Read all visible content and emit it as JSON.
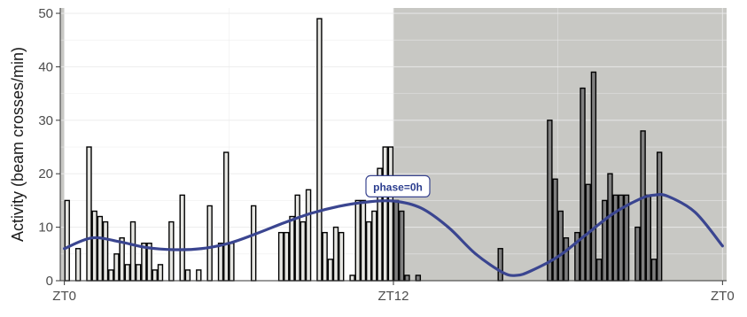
{
  "chart_data": {
    "type": "bar",
    "title": "",
    "xlabel": "",
    "ylabel": "Activity (beam crosses/min)",
    "ylim": [
      0,
      51
    ],
    "yticks": [
      0,
      10,
      20,
      30,
      40,
      50
    ],
    "xticks": [
      {
        "x": 0,
        "label": "ZT0"
      },
      {
        "x": 12,
        "label": "ZT12"
      },
      {
        "x": 24,
        "label": "ZT0"
      }
    ],
    "xlim": [
      -0.15,
      24.15
    ],
    "grid": true,
    "bin_width_h": 0.2,
    "shaded_periods": [
      {
        "start": -0.15,
        "end": 0,
        "color": "#c8c8c4"
      },
      {
        "start": 12,
        "end": 24.15,
        "color": "#c8c8c4"
      }
    ],
    "bar_colors": {
      "light": "#e6e6e2",
      "dark": "#7f7f7f",
      "stroke": "#000000"
    },
    "fit_color": "#3a4590",
    "values": [
      15,
      0,
      6,
      0,
      25,
      13,
      12,
      11,
      2,
      5,
      8,
      3,
      11,
      3,
      7,
      7,
      2,
      3,
      0,
      11,
      0,
      16,
      2,
      0,
      2,
      0,
      14,
      0,
      7,
      24,
      7,
      0,
      0,
      0,
      14,
      0,
      0,
      0,
      0,
      9,
      9,
      12,
      16,
      11,
      17,
      0,
      49,
      9,
      4,
      10,
      9,
      0,
      1,
      15,
      15,
      11,
      13,
      21,
      25,
      25,
      15,
      13,
      1,
      0,
      1,
      0,
      0,
      0,
      0,
      0,
      0,
      0,
      0,
      0,
      0,
      0,
      0,
      0,
      0,
      6,
      0,
      0,
      0,
      0,
      0,
      0,
      0,
      0,
      30,
      19,
      13,
      8,
      0,
      9,
      36,
      18,
      39,
      4,
      15,
      20,
      16,
      16,
      16,
      0,
      10,
      28,
      16,
      4,
      24
    ],
    "fit": {
      "label": "phase=0h",
      "points": [
        [
          0,
          6
        ],
        [
          1,
          8
        ],
        [
          2,
          7.3
        ],
        [
          3,
          6.2
        ],
        [
          4,
          5.8
        ],
        [
          5,
          6
        ],
        [
          6,
          7
        ],
        [
          7,
          8.8
        ],
        [
          8,
          10.8
        ],
        [
          9,
          12.6
        ],
        [
          10,
          13.9
        ],
        [
          11,
          14.7
        ],
        [
          12,
          14.9
        ],
        [
          13,
          13.6
        ],
        [
          14,
          10
        ],
        [
          15,
          5
        ],
        [
          16,
          1.5
        ],
        [
          16.5,
          1
        ],
        [
          17,
          1.8
        ],
        [
          18,
          4.5
        ],
        [
          19,
          8.5
        ],
        [
          20,
          12.5
        ],
        [
          21,
          15.3
        ],
        [
          21.5,
          16
        ],
        [
          22,
          15.8
        ],
        [
          23,
          12.8
        ],
        [
          24,
          6.5
        ]
      ],
      "label_x": 12,
      "label_y": 15
    }
  }
}
